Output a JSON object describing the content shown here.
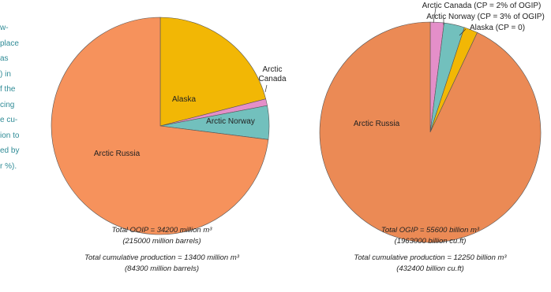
{
  "chart_data": [
    {
      "type": "pie",
      "categories": [
        "Alaska",
        "Arctic Canada",
        "Arctic Norway",
        "Arctic Russia"
      ],
      "values": [
        21,
        1,
        5,
        73
      ],
      "colors": [
        "#f2b705",
        "#e48fc9",
        "#72c0bd",
        "#f6925c"
      ],
      "notes": [
        "Total OOIP = 34200 million m³",
        "(215000 million barrels)",
        "Total cumulative production = 13400 million m³",
        "(84300 million barrels)"
      ]
    },
    {
      "type": "pie",
      "categories": [
        "Arctic Canada (CP = 2% of OGIP)",
        "Arctic Norway (CP = 3% of OGIP)",
        "Alaska (CP = 0)",
        "Arctic Russia"
      ],
      "values": [
        2,
        3,
        2,
        93
      ],
      "colors": [
        "#e48fc9",
        "#72c0bd",
        "#f2b705",
        "#eb8a55"
      ],
      "notes": [
        "Total OGIP = 55600 billion m³",
        "(1963000 billion cu.ft)",
        "Total cumulative production = 12250 billion m³",
        "(432400 billion cu.ft)"
      ]
    }
  ],
  "side_text": [
    "w-",
    "place",
    "as",
    ") in",
    "f the",
    "cing",
    "e cu-",
    "ion to",
    "ed by",
    "r %)."
  ]
}
